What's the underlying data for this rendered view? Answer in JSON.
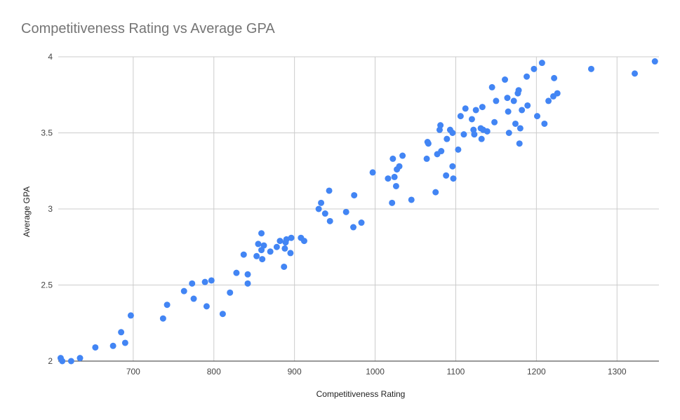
{
  "chart_data": {
    "type": "scatter",
    "title": "Competitiveness Rating vs Average GPA",
    "xlabel": "Competitiveness Rating",
    "ylabel": "Average GPA",
    "xlim": [
      607,
      1352
    ],
    "ylim": [
      2,
      4
    ],
    "xticks": [
      700,
      800,
      900,
      1000,
      1100,
      1200,
      1300
    ],
    "yticks": [
      2,
      2.5,
      3,
      3.5,
      4
    ],
    "grid": true,
    "point_color": "#4285f4",
    "gridline_color": "#cccccc",
    "x_tick_labels": [
      "700",
      "800",
      "900",
      "1000",
      "1100",
      "1200",
      "1300"
    ],
    "y_tick_labels": [
      "2",
      "2.5",
      "3",
      "3.5",
      "4"
    ],
    "series": [
      {
        "name": "Average GPA",
        "points": [
          [
            610,
            2.02
          ],
          [
            612,
            2.0
          ],
          [
            623,
            2.0
          ],
          [
            634,
            2.02
          ],
          [
            653,
            2.09
          ],
          [
            675,
            2.1
          ],
          [
            685,
            2.19
          ],
          [
            690,
            2.12
          ],
          [
            697,
            2.3
          ],
          [
            737,
            2.28
          ],
          [
            742,
            2.37
          ],
          [
            763,
            2.46
          ],
          [
            773,
            2.51
          ],
          [
            775,
            2.41
          ],
          [
            789,
            2.52
          ],
          [
            791,
            2.36
          ],
          [
            797,
            2.53
          ],
          [
            811,
            2.31
          ],
          [
            820,
            2.45
          ],
          [
            828,
            2.58
          ],
          [
            837,
            2.7
          ],
          [
            842,
            2.57
          ],
          [
            842,
            2.51
          ],
          [
            853,
            2.69
          ],
          [
            855,
            2.77
          ],
          [
            859,
            2.84
          ],
          [
            859,
            2.73
          ],
          [
            860,
            2.67
          ],
          [
            862,
            2.76
          ],
          [
            870,
            2.72
          ],
          [
            878,
            2.75
          ],
          [
            882,
            2.79
          ],
          [
            887,
            2.62
          ],
          [
            888,
            2.74
          ],
          [
            889,
            2.78
          ],
          [
            890,
            2.8
          ],
          [
            895,
            2.71
          ],
          [
            896,
            2.81
          ],
          [
            908,
            2.81
          ],
          [
            912,
            2.79
          ],
          [
            930,
            3.0
          ],
          [
            933,
            3.04
          ],
          [
            938,
            2.97
          ],
          [
            943,
            3.12
          ],
          [
            944,
            2.92
          ],
          [
            964,
            2.98
          ],
          [
            973,
            2.88
          ],
          [
            974,
            3.09
          ],
          [
            983,
            2.91
          ],
          [
            997,
            3.24
          ],
          [
            1016,
            3.2
          ],
          [
            1021,
            3.04
          ],
          [
            1022,
            3.33
          ],
          [
            1024,
            3.21
          ],
          [
            1026,
            3.15
          ],
          [
            1027,
            3.26
          ],
          [
            1030,
            3.28
          ],
          [
            1034,
            3.35
          ],
          [
            1045,
            3.06
          ],
          [
            1064,
            3.33
          ],
          [
            1065,
            3.44
          ],
          [
            1066,
            3.43
          ],
          [
            1075,
            3.11
          ],
          [
            1077,
            3.36
          ],
          [
            1080,
            3.52
          ],
          [
            1081,
            3.55
          ],
          [
            1082,
            3.38
          ],
          [
            1088,
            3.22
          ],
          [
            1089,
            3.46
          ],
          [
            1093,
            3.52
          ],
          [
            1096,
            3.5
          ],
          [
            1096,
            3.28
          ],
          [
            1097,
            3.2
          ],
          [
            1103,
            3.39
          ],
          [
            1106,
            3.61
          ],
          [
            1110,
            3.49
          ],
          [
            1112,
            3.66
          ],
          [
            1120,
            3.59
          ],
          [
            1122,
            3.52
          ],
          [
            1123,
            3.49
          ],
          [
            1125,
            3.65
          ],
          [
            1131,
            3.53
          ],
          [
            1132,
            3.46
          ],
          [
            1133,
            3.67
          ],
          [
            1134,
            3.52
          ],
          [
            1139,
            3.51
          ],
          [
            1145,
            3.8
          ],
          [
            1148,
            3.57
          ],
          [
            1150,
            3.71
          ],
          [
            1161,
            3.85
          ],
          [
            1164,
            3.73
          ],
          [
            1165,
            3.64
          ],
          [
            1166,
            3.5
          ],
          [
            1172,
            3.71
          ],
          [
            1174,
            3.56
          ],
          [
            1177,
            3.76
          ],
          [
            1178,
            3.78
          ],
          [
            1179,
            3.43
          ],
          [
            1180,
            3.53
          ],
          [
            1182,
            3.65
          ],
          [
            1188,
            3.87
          ],
          [
            1189,
            3.68
          ],
          [
            1197,
            3.92
          ],
          [
            1201,
            3.61
          ],
          [
            1207,
            3.96
          ],
          [
            1210,
            3.56
          ],
          [
            1215,
            3.71
          ],
          [
            1221,
            3.74
          ],
          [
            1222,
            3.86
          ],
          [
            1226,
            3.76
          ],
          [
            1268,
            3.92
          ],
          [
            1322,
            3.89
          ],
          [
            1347,
            3.97
          ]
        ]
      }
    ]
  }
}
